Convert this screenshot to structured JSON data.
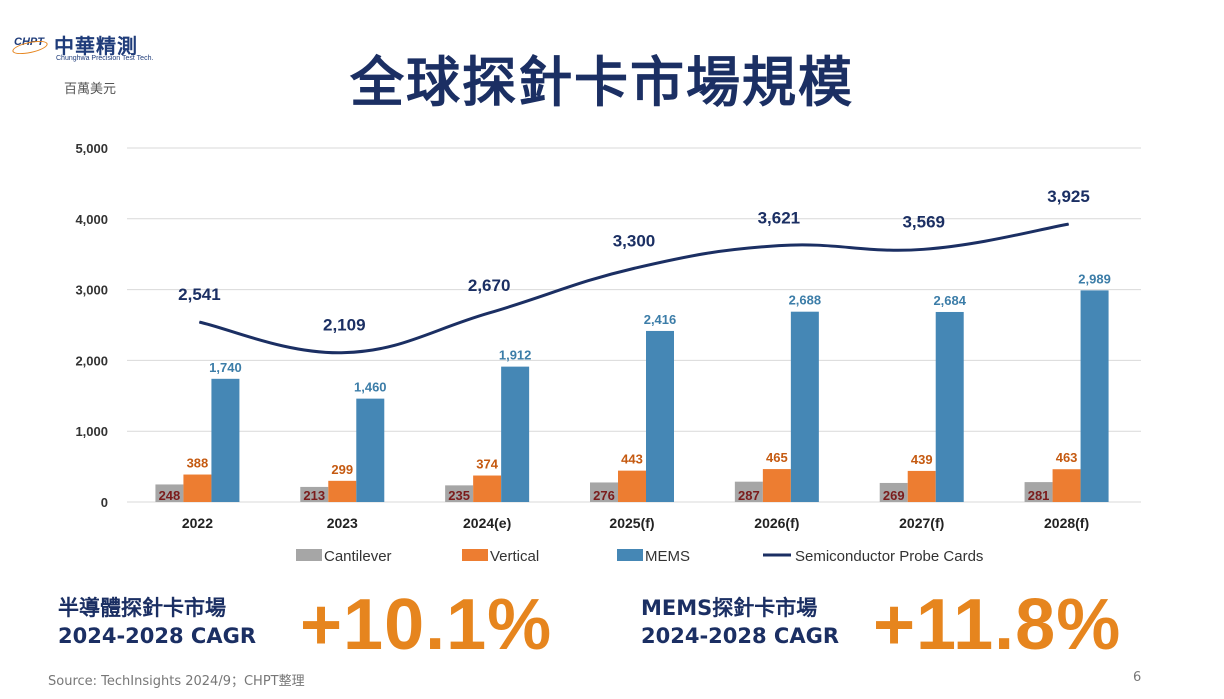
{
  "logo": {
    "mark": "CHPT",
    "name": "中華精測",
    "subtitle": "Chunghwa Precision Test Tech."
  },
  "unit_label": "百萬美元",
  "title": "全球探針卡市場規模",
  "chart_data": {
    "type": "bar",
    "categories": [
      "2022",
      "2023",
      "2024(e)",
      "2025(f)",
      "2026(f)",
      "2027(f)",
      "2028(f)"
    ],
    "ylim": [
      0,
      5000
    ],
    "yticks": [
      "0",
      "1,000",
      "2,000",
      "3,000",
      "4,000",
      "5,000"
    ],
    "grid": true,
    "legend_position": "bottom",
    "series": [
      {
        "name": "Cantilever",
        "type": "bar",
        "color": "#a6a6a6",
        "label_color": "#7b1c1c",
        "values": [
          248,
          213,
          235,
          276,
          287,
          269,
          281
        ],
        "labels": [
          "248",
          "213",
          "235",
          "276",
          "287",
          "269",
          "281"
        ]
      },
      {
        "name": "Vertical",
        "type": "bar",
        "color": "#ed7d31",
        "label_color": "#c55a11",
        "values": [
          388,
          299,
          374,
          443,
          465,
          439,
          463
        ],
        "labels": [
          "388",
          "299",
          "374",
          "443",
          "465",
          "439",
          "463"
        ]
      },
      {
        "name": "MEMS",
        "type": "bar",
        "color": "#4587b5",
        "label_color": "#3c7da8",
        "values": [
          1740,
          1460,
          1912,
          2416,
          2688,
          2684,
          2989
        ],
        "labels": [
          "1,740",
          "1,460",
          "1,912",
          "2,416",
          "2,688",
          "2,684",
          "2,989"
        ]
      },
      {
        "name": "Semiconductor Probe Cards",
        "type": "line",
        "color": "#1b2f63",
        "label_color": "#1b2f63",
        "values": [
          2541,
          2109,
          2670,
          3300,
          3621,
          3569,
          3925
        ],
        "labels": [
          "2,541",
          "2,109",
          "2,670",
          "3,300",
          "3,621",
          "3,569",
          "3,925"
        ]
      }
    ]
  },
  "cagr": [
    {
      "label_line1": "半導體探針卡市場",
      "label_line2": "2024-2028 CAGR",
      "value": "+10.1%"
    },
    {
      "label_line1": "MEMS探針卡市場",
      "label_line2": "2024-2028 CAGR",
      "value": "+11.8%"
    }
  ],
  "footer": {
    "source": "Source: TechInsights 2024/9；CHPT整理",
    "page": "6"
  }
}
